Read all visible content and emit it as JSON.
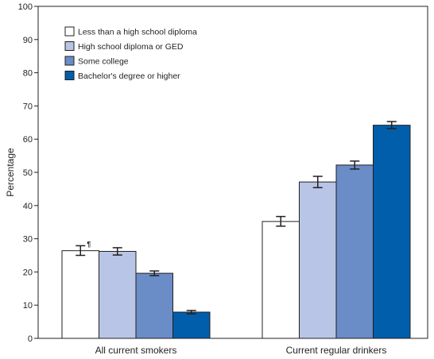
{
  "chart_data": {
    "type": "bar",
    "ylabel": "Percentage",
    "xlabel": "",
    "ylim": [
      0,
      100
    ],
    "yticks": [
      0,
      10,
      20,
      30,
      40,
      50,
      60,
      70,
      80,
      90,
      100
    ],
    "categories": [
      "All current smokers",
      "Current regular drinkers"
    ],
    "legend_position": "top-left",
    "series": [
      {
        "name": "Less than a high school diploma",
        "color": "#ffffff",
        "values": [
          26.4,
          35.2
        ],
        "error_low": [
          25.0,
          33.8
        ],
        "error_high": [
          27.9,
          36.7
        ]
      },
      {
        "name": "High school diploma or GED",
        "color": "#b8c5e6",
        "values": [
          26.2,
          47.1
        ],
        "error_low": [
          25.1,
          45.4
        ],
        "error_high": [
          27.3,
          48.8
        ]
      },
      {
        "name": "Some college",
        "color": "#6a8cc7",
        "values": [
          19.6,
          52.2
        ],
        "error_low": [
          18.9,
          51.0
        ],
        "error_high": [
          20.3,
          53.4
        ]
      },
      {
        "name": "Bachelor's degree or higher",
        "color": "#005eaa",
        "values": [
          7.9,
          64.2
        ],
        "error_low": [
          7.4,
          63.2
        ],
        "error_high": [
          8.4,
          65.3
        ]
      }
    ],
    "annotations": [
      {
        "text": "¶",
        "category_index": 0,
        "series_index": 0
      }
    ]
  }
}
